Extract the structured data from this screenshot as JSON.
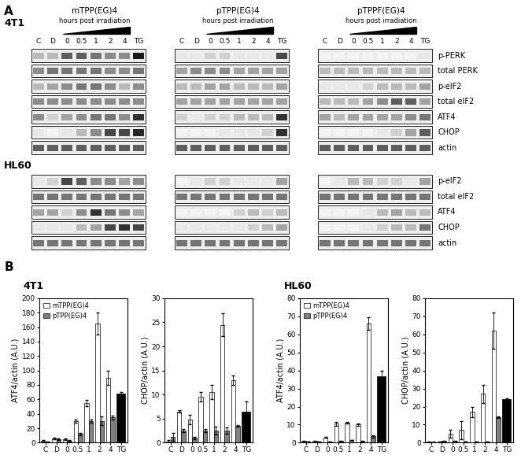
{
  "panel_A": {
    "label": "A",
    "lanes": [
      "C",
      "D",
      "0",
      "0.5",
      "1",
      "2",
      "4",
      "TG"
    ],
    "time_label": "hours post irradiation",
    "treatments": [
      "mTPP(EG)4",
      "pTPP(EG)4",
      "pTPPF(EG)4"
    ],
    "cell_lines": [
      {
        "name": "4T1",
        "rows": [
          "p-PERK",
          "total PERK",
          "p-eIF2",
          "total eIF2",
          "ATF4",
          "CHOP",
          "actin"
        ],
        "intensities": [
          [
            [
              0.3,
              0.3,
              0.7,
              0.7,
              0.6,
              0.5,
              0.5,
              1.0
            ],
            [
              0.5,
              0.6,
              0.6,
              0.6,
              0.6,
              0.5,
              0.5,
              0.6
            ],
            [
              0.3,
              0.4,
              0.5,
              0.6,
              0.6,
              0.5,
              0.3,
              0.5
            ],
            [
              0.5,
              0.5,
              0.5,
              0.5,
              0.5,
              0.5,
              0.5,
              0.5
            ],
            [
              0.5,
              0.2,
              0.4,
              0.5,
              0.6,
              0.6,
              0.5,
              0.9
            ],
            [
              0.1,
              0.05,
              0.1,
              0.3,
              0.5,
              0.8,
              0.8,
              0.95
            ],
            [
              0.7,
              0.7,
              0.7,
              0.7,
              0.7,
              0.7,
              0.7,
              0.7
            ]
          ],
          [
            [
              0.1,
              0.1,
              0.2,
              0.2,
              0.1,
              0.1,
              0.1,
              0.8
            ],
            [
              0.4,
              0.5,
              0.5,
              0.5,
              0.4,
              0.4,
              0.4,
              0.4
            ],
            [
              0.3,
              0.3,
              0.4,
              0.4,
              0.3,
              0.3,
              0.3,
              0.4
            ],
            [
              0.4,
              0.4,
              0.4,
              0.4,
              0.4,
              0.4,
              0.4,
              0.4
            ],
            [
              0.2,
              0.1,
              0.2,
              0.2,
              0.3,
              0.3,
              0.3,
              0.9
            ],
            [
              0.05,
              0.05,
              0.05,
              0.1,
              0.1,
              0.1,
              0.2,
              0.9
            ],
            [
              0.7,
              0.7,
              0.7,
              0.7,
              0.7,
              0.7,
              0.7,
              0.7
            ]
          ],
          [
            [
              0.05,
              0.05,
              0.05,
              0.05,
              0.05,
              0.05,
              0.05,
              0.1
            ],
            [
              0.3,
              0.3,
              0.3,
              0.3,
              0.3,
              0.3,
              0.3,
              0.3
            ],
            [
              0.1,
              0.1,
              0.1,
              0.2,
              0.3,
              0.3,
              0.3,
              0.4
            ],
            [
              0.3,
              0.3,
              0.3,
              0.4,
              0.5,
              0.7,
              0.7,
              0.4
            ],
            [
              0.4,
              0.3,
              0.4,
              0.4,
              0.4,
              0.4,
              0.5,
              0.6
            ],
            [
              0.05,
              0.05,
              0.05,
              0.05,
              0.1,
              0.2,
              0.4,
              0.7
            ],
            [
              0.7,
              0.7,
              0.7,
              0.7,
              0.7,
              0.7,
              0.7,
              0.7
            ]
          ]
        ]
      },
      {
        "name": "HL60",
        "rows": [
          "p-eIF2",
          "total eIF2",
          "ATF4",
          "CHOP",
          "actin"
        ],
        "intensities": [
          [
            [
              0.1,
              0.2,
              0.8,
              0.7,
              0.5,
              0.5,
              0.4,
              0.5
            ],
            [
              0.6,
              0.6,
              0.6,
              0.6,
              0.6,
              0.6,
              0.6,
              0.6
            ],
            [
              0.4,
              0.4,
              0.2,
              0.5,
              0.9,
              0.6,
              0.5,
              0.4
            ],
            [
              0.1,
              0.1,
              0.1,
              0.3,
              0.4,
              0.8,
              0.9,
              0.8
            ],
            [
              0.6,
              0.6,
              0.6,
              0.6,
              0.6,
              0.6,
              0.6,
              0.6
            ]
          ],
          [
            [
              0.05,
              0.1,
              0.2,
              0.2,
              0.1,
              0.1,
              0.1,
              0.4
            ],
            [
              0.6,
              0.6,
              0.6,
              0.6,
              0.6,
              0.6,
              0.6,
              0.6
            ],
            [
              0.05,
              0.05,
              0.05,
              0.05,
              0.2,
              0.3,
              0.2,
              0.3
            ],
            [
              0.1,
              0.1,
              0.1,
              0.1,
              0.1,
              0.2,
              0.3,
              0.4
            ],
            [
              0.6,
              0.6,
              0.6,
              0.6,
              0.6,
              0.6,
              0.6,
              0.6
            ]
          ],
          [
            [
              0.05,
              0.1,
              0.3,
              0.3,
              0.2,
              0.2,
              0.1,
              0.4
            ],
            [
              0.6,
              0.6,
              0.6,
              0.6,
              0.6,
              0.6,
              0.6,
              0.6
            ],
            [
              0.05,
              0.05,
              0.05,
              0.1,
              0.3,
              0.4,
              0.3,
              0.3
            ],
            [
              0.05,
              0.05,
              0.05,
              0.1,
              0.2,
              0.3,
              0.3,
              0.6
            ],
            [
              0.6,
              0.6,
              0.6,
              0.6,
              0.6,
              0.6,
              0.6,
              0.6
            ]
          ]
        ]
      }
    ]
  },
  "panel_B": {
    "label": "B",
    "groups": [
      "4T1",
      "HL60"
    ]
  },
  "chart_data": [
    {
      "type": "bar",
      "y_label": "ATF4/actin (A.U.)",
      "legend": "upper left",
      "categories": [
        "C",
        "D",
        "0",
        "0.5",
        "1",
        "2",
        "4",
        "TG"
      ],
      "ylim": [
        0,
        200
      ],
      "yticks": [
        0,
        20,
        40,
        60,
        80,
        100,
        120,
        140,
        160,
        180,
        200
      ],
      "series": [
        {
          "name": "mTPP(EG)4",
          "color": "#ffffff",
          "values": [
            3,
            6,
            5,
            30,
            55,
            165,
            90,
            null
          ],
          "errors": [
            1,
            1,
            1,
            2,
            4,
            15,
            10,
            null
          ]
        },
        {
          "name": "pTPP(EG)4",
          "color": "#808080",
          "values": [
            1,
            5,
            3,
            12,
            30,
            30,
            35,
            null
          ],
          "errors": [
            0.5,
            1,
            1,
            2,
            2,
            6,
            3,
            null
          ]
        },
        {
          "color": "#000000",
          "values": [
            null,
            null,
            null,
            null,
            null,
            null,
            null,
            68
          ],
          "errors": [
            null,
            null,
            null,
            null,
            null,
            null,
            null,
            2
          ]
        }
      ]
    },
    {
      "type": "bar",
      "y_label": "CHOP/actin (A.U.)",
      "categories": [
        "C",
        "D",
        "0",
        "0.5",
        "1",
        "2",
        "4",
        "TG"
      ],
      "ylim": [
        0,
        30
      ],
      "yticks": [
        0,
        5,
        10,
        15,
        20,
        25,
        30
      ],
      "series": [
        {
          "name": "mTPP(EG)4",
          "color": "#ffffff",
          "values": [
            0.3,
            6.5,
            4.8,
            9.5,
            10.5,
            24.5,
            13,
            null
          ],
          "errors": [
            0.2,
            0.2,
            1,
            1,
            1.5,
            2.3,
            1,
            null
          ]
        },
        {
          "name": "pTPP(EG)4",
          "color": "#808080",
          "values": [
            1.2,
            2.5,
            1,
            2.5,
            2.5,
            2.5,
            3.5,
            null
          ],
          "errors": [
            0.8,
            0.3,
            0.2,
            0.3,
            0.8,
            0.7,
            0.2,
            null
          ]
        },
        {
          "color": "#000000",
          "values": [
            null,
            null,
            null,
            null,
            null,
            null,
            null,
            6.5
          ],
          "errors": [
            null,
            null,
            null,
            null,
            null,
            null,
            null,
            2
          ]
        }
      ]
    },
    {
      "type": "bar",
      "y_label": "ATF4/actin (A.U.)",
      "legend": "upper left",
      "categories": [
        "C",
        "D",
        "0",
        "0.5",
        "1",
        "2",
        "4",
        "TG"
      ],
      "ylim": [
        0,
        80
      ],
      "yticks": [
        0,
        10,
        20,
        30,
        40,
        50,
        60,
        70,
        80
      ],
      "series": [
        {
          "name": "mTPP(EG)4",
          "color": "#ffffff",
          "values": [
            1,
            1,
            3,
            10.5,
            11,
            10,
            66,
            null
          ],
          "errors": [
            0.2,
            0.2,
            0.3,
            1,
            0.5,
            0.8,
            3.5,
            null
          ]
        },
        {
          "name": "pTPP(EG)4",
          "color": "#808080",
          "values": [
            0.5,
            0.5,
            0.5,
            1,
            1.5,
            1,
            3.5,
            null
          ],
          "errors": [
            0.1,
            0.1,
            0.1,
            0.2,
            0.2,
            0.2,
            0.5,
            null
          ]
        },
        {
          "color": "#000000",
          "values": [
            null,
            null,
            null,
            null,
            null,
            null,
            null,
            37
          ],
          "errors": [
            null,
            null,
            null,
            null,
            null,
            null,
            null,
            3
          ]
        }
      ]
    },
    {
      "type": "bar",
      "y_label": "CHOP/actin (A.U.)",
      "categories": [
        "C",
        "D",
        "0",
        "0.5",
        "1",
        "2",
        "4",
        "TG"
      ],
      "ylim": [
        0,
        80
      ],
      "yticks": [
        0,
        10,
        20,
        30,
        40,
        50,
        60,
        70,
        80
      ],
      "series": [
        {
          "name": "mTPP(EG)4",
          "color": "#ffffff",
          "values": [
            0.5,
            0.5,
            5,
            7,
            17,
            27,
            62,
            null
          ],
          "errors": [
            0.2,
            0.2,
            2,
            5,
            3,
            5,
            10,
            null
          ]
        },
        {
          "name": "pTPP(EG)4",
          "color": "#808080",
          "values": [
            0.3,
            1,
            1,
            0.5,
            0.5,
            0.5,
            14,
            null
          ],
          "errors": [
            0.1,
            0.2,
            0.2,
            0.1,
            0.1,
            0.1,
            0.5,
            null
          ]
        },
        {
          "color": "#000000",
          "values": [
            null,
            null,
            null,
            null,
            null,
            null,
            null,
            24
          ],
          "errors": [
            null,
            null,
            null,
            null,
            null,
            null,
            null,
            0.5
          ]
        }
      ]
    }
  ]
}
